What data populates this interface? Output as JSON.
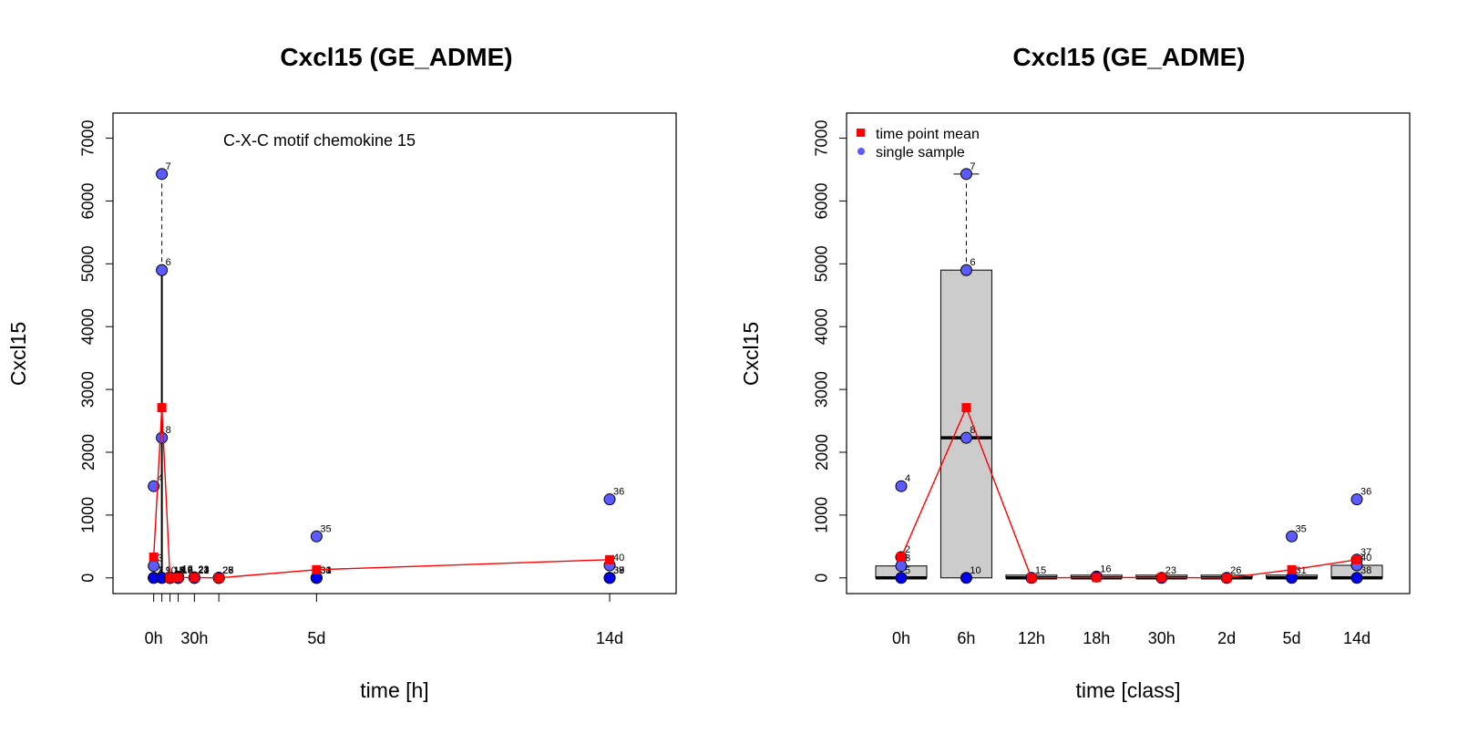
{
  "chart_data": [
    {
      "type": "scatter",
      "title": "Cxcl15 (GE_ADME)",
      "annotation": "C-X-C motif chemokine 15",
      "xlabel": "time [h]",
      "ylabel": "Cxcl15",
      "ylim": [
        -250,
        7400
      ],
      "xlim": [
        -30,
        385
      ],
      "yticks": [
        0,
        1000,
        2000,
        3000,
        4000,
        5000,
        6000,
        7000
      ],
      "xticks": [
        0,
        6,
        12,
        18,
        30,
        48,
        120,
        336
      ],
      "xtick_labels": [
        {
          "x": 0,
          "label": "0h"
        },
        {
          "x": 30,
          "label": "30h"
        },
        {
          "x": 120,
          "label": "5d"
        },
        {
          "x": 336,
          "label": "14d"
        }
      ],
      "samples": [
        {
          "id": "1",
          "x": 0,
          "y": 0
        },
        {
          "id": "2",
          "x": 0,
          "y": 0
        },
        {
          "id": "3",
          "x": 0,
          "y": 190
        },
        {
          "id": "4",
          "x": 0,
          "y": 1460
        },
        {
          "id": "6",
          "x": 6,
          "y": 4900
        },
        {
          "id": "7",
          "x": 6,
          "y": 6430
        },
        {
          "id": "8",
          "x": 6,
          "y": 2230
        },
        {
          "id": "9",
          "x": 6,
          "y": 0
        },
        {
          "id": "10",
          "x": 6,
          "y": 0
        },
        {
          "id": "11",
          "x": 12,
          "y": 0
        },
        {
          "id": "12",
          "x": 12,
          "y": 0
        },
        {
          "id": "13",
          "x": 12,
          "y": 0
        },
        {
          "id": "14",
          "x": 12,
          "y": 0
        },
        {
          "id": "15",
          "x": 12,
          "y": 0
        },
        {
          "id": "16",
          "x": 18,
          "y": 20
        },
        {
          "id": "17",
          "x": 18,
          "y": 0
        },
        {
          "id": "18",
          "x": 18,
          "y": 0
        },
        {
          "id": "19",
          "x": 18,
          "y": 0
        },
        {
          "id": "21",
          "x": 30,
          "y": 0
        },
        {
          "id": "22",
          "x": 30,
          "y": 0
        },
        {
          "id": "23",
          "x": 30,
          "y": 10
        },
        {
          "id": "24",
          "x": 30,
          "y": 0
        },
        {
          "id": "25",
          "x": 48,
          "y": 0
        },
        {
          "id": "26",
          "x": 48,
          "y": 0
        },
        {
          "id": "27",
          "x": 48,
          "y": 0
        },
        {
          "id": "28",
          "x": 48,
          "y": 0
        },
        {
          "id": "31",
          "x": 120,
          "y": 0
        },
        {
          "id": "33",
          "x": 120,
          "y": 0
        },
        {
          "id": "34",
          "x": 120,
          "y": 0
        },
        {
          "id": "35",
          "x": 120,
          "y": 660
        },
        {
          "id": "36",
          "x": 336,
          "y": 1250
        },
        {
          "id": "37",
          "x": 336,
          "y": 0
        },
        {
          "id": "38",
          "x": 336,
          "y": 0
        },
        {
          "id": "39",
          "x": 336,
          "y": 0
        },
        {
          "id": "40",
          "x": 336,
          "y": 200
        }
      ],
      "means": [
        {
          "x": 0,
          "y": 330
        },
        {
          "x": 6,
          "y": 2710
        },
        {
          "x": 12,
          "y": 0
        },
        {
          "x": 18,
          "y": 5
        },
        {
          "x": 30,
          "y": 5
        },
        {
          "x": 48,
          "y": 0
        },
        {
          "x": 120,
          "y": 130
        },
        {
          "x": 336,
          "y": 290
        }
      ],
      "whisker": {
        "x": 6,
        "low": 4900,
        "high": 6430
      }
    },
    {
      "type": "box",
      "title": "Cxcl15 (GE_ADME)",
      "xlabel": "time [class]",
      "ylabel": "Cxcl15",
      "ylim": [
        -250,
        7400
      ],
      "yticks": [
        0,
        1000,
        2000,
        3000,
        4000,
        5000,
        6000,
        7000
      ],
      "categories": [
        "0h",
        "6h",
        "12h",
        "18h",
        "30h",
        "2d",
        "5d",
        "14d"
      ],
      "boxes": [
        {
          "q1": 0,
          "median": 0,
          "q3": 190,
          "whisker_low": 0,
          "whisker_high": 190
        },
        {
          "q1": 0,
          "median": 2230,
          "q3": 4900,
          "whisker_low": 0,
          "whisker_high": 6430
        },
        {
          "q1": 0,
          "median": 0,
          "q3": 10,
          "whisker_low": 0,
          "whisker_high": 10
        },
        {
          "q1": 0,
          "median": 0,
          "q3": 20,
          "whisker_low": 0,
          "whisker_high": 20
        },
        {
          "q1": 0,
          "median": 0,
          "q3": 10,
          "whisker_low": 0,
          "whisker_high": 10
        },
        {
          "q1": 0,
          "median": 0,
          "q3": 5,
          "whisker_low": 0,
          "whisker_high": 5
        },
        {
          "q1": 0,
          "median": 0,
          "q3": 20,
          "whisker_low": 0,
          "whisker_high": 20
        },
        {
          "q1": 0,
          "median": 0,
          "q3": 200,
          "whisker_low": 0,
          "whisker_high": 200
        }
      ],
      "samples": [
        {
          "id": "4",
          "cat": 0,
          "y": 1460
        },
        {
          "id": "2",
          "cat": 0,
          "y": 330
        },
        {
          "id": "3",
          "cat": 0,
          "y": 190
        },
        {
          "id": "5",
          "cat": 0,
          "y": 0
        },
        {
          "id": "7",
          "cat": 1,
          "y": 6430
        },
        {
          "id": "6",
          "cat": 1,
          "y": 4900
        },
        {
          "id": "8",
          "cat": 1,
          "y": 2230
        },
        {
          "id": "10",
          "cat": 1,
          "y": 0
        },
        {
          "id": "15",
          "cat": 2,
          "y": 0
        },
        {
          "id": "16",
          "cat": 3,
          "y": 20
        },
        {
          "id": "23",
          "cat": 4,
          "y": 0
        },
        {
          "id": "26",
          "cat": 5,
          "y": 0
        },
        {
          "id": "35",
          "cat": 6,
          "y": 660
        },
        {
          "id": "31",
          "cat": 6,
          "y": 0
        },
        {
          "id": "36",
          "cat": 7,
          "y": 1250
        },
        {
          "id": "37",
          "cat": 7,
          "y": 290
        },
        {
          "id": "40",
          "cat": 7,
          "y": 200
        },
        {
          "id": "38",
          "cat": 7,
          "y": 0
        }
      ],
      "means": [
        330,
        2710,
        0,
        5,
        5,
        0,
        130,
        290
      ],
      "legend": {
        "position": "top-left",
        "items": [
          {
            "label": "time point mean",
            "color": "#ff0000",
            "marker": "square"
          },
          {
            "label": "single sample",
            "color": "#5b5bff",
            "marker": "circle"
          }
        ]
      }
    }
  ],
  "colors": {
    "mean": "#ff0000",
    "sample_fill": "#5b5bff",
    "sample_dark": "#0000ee",
    "box_fill": "#cccccc"
  }
}
